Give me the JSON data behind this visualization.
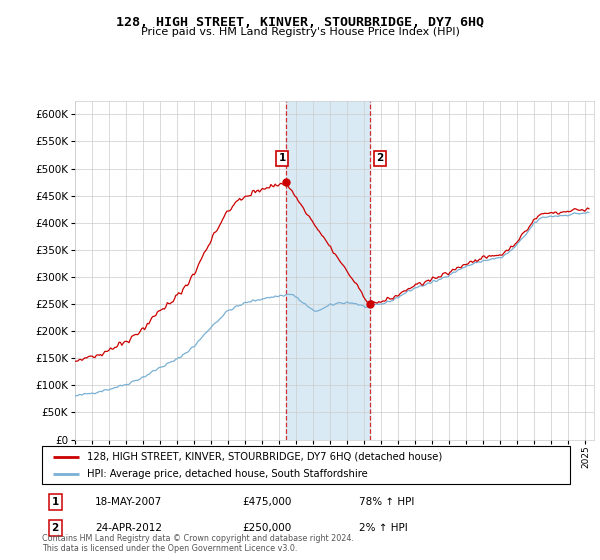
{
  "title": "128, HIGH STREET, KINVER, STOURBRIDGE, DY7 6HQ",
  "subtitle": "Price paid vs. HM Land Registry's House Price Index (HPI)",
  "legend_property": "128, HIGH STREET, KINVER, STOURBRIDGE, DY7 6HQ (detached house)",
  "legend_hpi": "HPI: Average price, detached house, South Staffordshire",
  "transaction1_date": "18-MAY-2007",
  "transaction1_price": 475000,
  "transaction1_pct": "78% ↑ HPI",
  "transaction1_year": 2007.38,
  "transaction2_date": "24-APR-2012",
  "transaction2_price": 250000,
  "transaction2_pct": "2% ↑ HPI",
  "transaction2_year": 2012.31,
  "footer": "Contains HM Land Registry data © Crown copyright and database right 2024.\nThis data is licensed under the Open Government Licence v3.0.",
  "ylim": [
    0,
    625000
  ],
  "xlim_start": 1995.0,
  "xlim_end": 2025.5,
  "property_color": "#cc0000",
  "hpi_color": "#7ab0d4",
  "shade_color": "#daeaf5",
  "grid_color": "#cccccc",
  "background_color": "#ffffff"
}
